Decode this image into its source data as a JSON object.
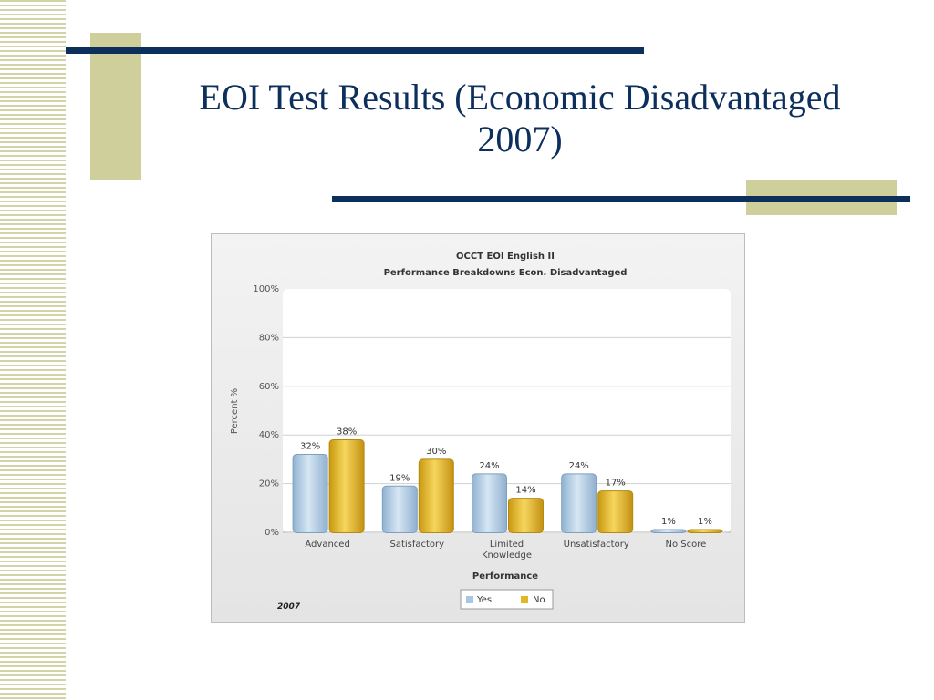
{
  "slide": {
    "title_line1": "EOI Test Results (Economic Disadvantaged",
    "title_line2": "2007)"
  },
  "colors": {
    "accent": "#cfcf9b",
    "rule": "#0d2f5c",
    "series_yes": "#a9c7e2",
    "series_no": "#e3b627"
  },
  "chart_data": {
    "type": "bar",
    "title": "OCCT EOI English II",
    "subtitle": "Performance Breakdowns Econ. Disadvantaged",
    "xlabel": "Performance",
    "ylabel": "Percent %",
    "ylim": [
      0,
      100
    ],
    "y_ticks": [
      "0%",
      "20%",
      "40%",
      "60%",
      "80%",
      "100%"
    ],
    "categories": [
      "Advanced",
      "Satisfactory",
      "Limited Knowledge",
      "Unsatisfactory",
      "No Score"
    ],
    "series": [
      {
        "name": "Yes",
        "values": [
          32,
          19,
          24,
          24,
          1
        ],
        "labels": [
          "32%",
          "19%",
          "24%",
          "24%",
          "1%"
        ]
      },
      {
        "name": "No",
        "values": [
          38,
          30,
          14,
          17,
          1
        ],
        "labels": [
          "38%",
          "30%",
          "14%",
          "17%",
          "1%"
        ]
      }
    ],
    "grid": true,
    "legend_position": "bottom-center",
    "footnote": "2007"
  }
}
